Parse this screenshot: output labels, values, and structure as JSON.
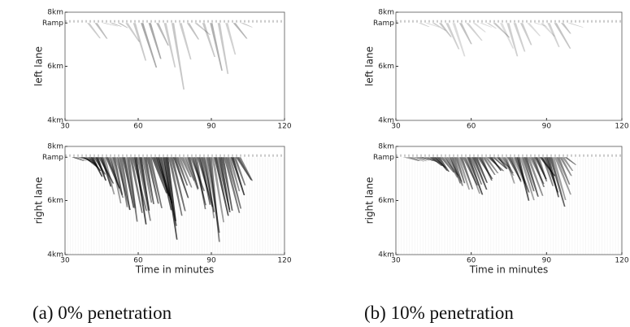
{
  "chart_data": [
    {
      "type": "heatmap",
      "ylabel": "left lane",
      "xlim": [
        30,
        120
      ],
      "xticks": [
        30,
        60,
        90,
        120
      ],
      "ylim": [
        4,
        8
      ],
      "yticks": [
        {
          "value": 4,
          "label": "4km"
        },
        {
          "value": 6,
          "label": "6km"
        },
        {
          "value": 7.6,
          "label": "Ramp"
        },
        {
          "value": 8,
          "label": "8km"
        }
      ]
    },
    {
      "type": "heatmap",
      "ylabel": "right lane",
      "xlabel": "Time in minutes",
      "xlim": [
        30,
        120
      ],
      "xticks": [
        30,
        60,
        90,
        120
      ],
      "ylim": [
        4,
        8
      ],
      "yticks": [
        {
          "value": 4,
          "label": "4km"
        },
        {
          "value": 6,
          "label": "6km"
        },
        {
          "value": 7.6,
          "label": "Ramp"
        },
        {
          "value": 8,
          "label": "8km"
        }
      ]
    },
    {
      "type": "heatmap",
      "ylabel": "left lane",
      "xlim": [
        30,
        120
      ],
      "xticks": [
        30,
        60,
        90,
        120
      ],
      "ylim": [
        4,
        8
      ],
      "yticks": [
        {
          "value": 4,
          "label": "4km"
        },
        {
          "value": 6,
          "label": "6km"
        },
        {
          "value": 7.6,
          "label": "Ramp"
        },
        {
          "value": 8,
          "label": "8km"
        }
      ]
    },
    {
      "type": "heatmap",
      "ylabel": "right lane",
      "xlabel": "Time in minutes",
      "xlim": [
        30,
        120
      ],
      "xticks": [
        30,
        60,
        90,
        120
      ],
      "ylim": [
        4,
        8
      ],
      "yticks": [
        {
          "value": 4,
          "label": "4km"
        },
        {
          "value": 6,
          "label": "6km"
        },
        {
          "value": 7.6,
          "label": "Ramp"
        },
        {
          "value": 8,
          "label": "8km"
        }
      ]
    }
  ],
  "captions": [
    "(a) 0% penetration",
    "(b) 10% penetration"
  ]
}
